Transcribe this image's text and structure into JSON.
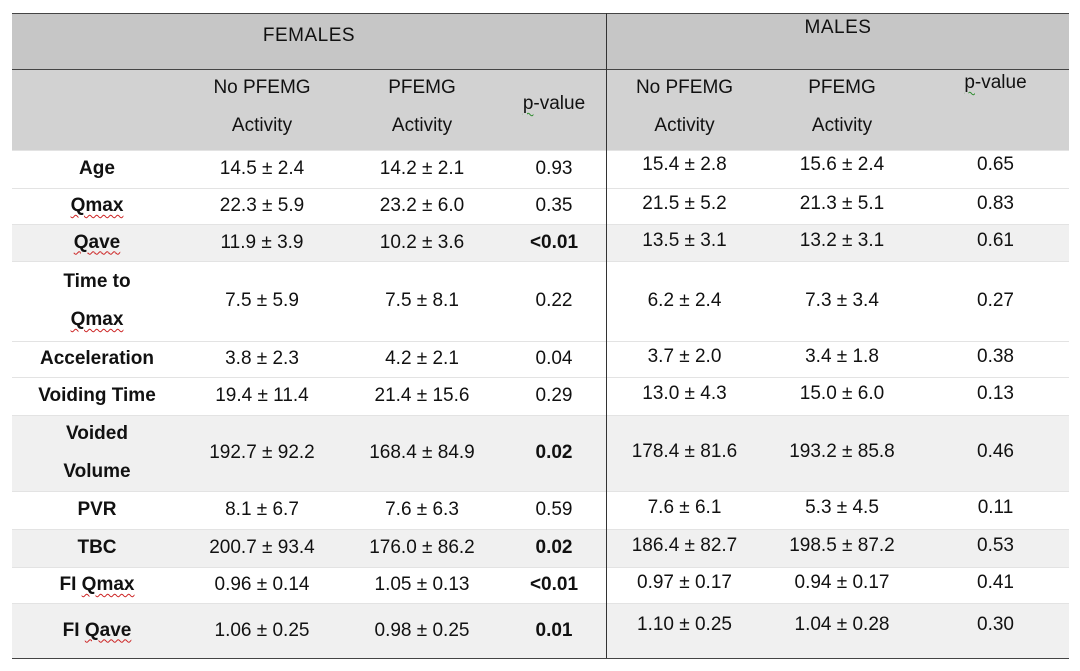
{
  "groups": {
    "females": "FEMALES",
    "males": "MALES"
  },
  "columns": {
    "no_pfemg_1": "No PFEMG",
    "no_pfemg_2": "Activity",
    "pfemg_1": "PFEMG",
    "pfemg_2": "Activity",
    "p_prefix": "p",
    "p_suffix": "-value"
  },
  "rows": [
    {
      "label": "Age",
      "label2": "",
      "f_no": "14.5 ± 2.4",
      "f_pf": "14.2 ± 2.1",
      "f_p": "0.93",
      "m_no": "15.4 ± 2.8",
      "m_pf": "15.6 ± 2.4",
      "m_p": "0.65"
    },
    {
      "label": "Qmax",
      "label2": "",
      "f_no": "22.3 ± 5.9",
      "f_pf": "23.2 ± 6.0",
      "f_p": "0.35",
      "m_no": "21.5 ± 5.2",
      "m_pf": "21.3 ± 5.1",
      "m_p": "0.83"
    },
    {
      "label": "Qave",
      "label2": "",
      "f_no": "11.9 ± 3.9",
      "f_pf": "10.2 ± 3.6",
      "f_p": "<0.01",
      "m_no": "13.5 ± 3.1",
      "m_pf": "13.2 ± 3.1",
      "m_p": "0.61"
    },
    {
      "label": "Time to",
      "label2": "Qmax",
      "f_no": "7.5 ± 5.9",
      "f_pf": "7.5 ± 8.1",
      "f_p": "0.22",
      "m_no": "6.2 ± 2.4",
      "m_pf": "7.3 ± 3.4",
      "m_p": "0.27"
    },
    {
      "label": "Acceleration",
      "label2": "",
      "f_no": "3.8 ± 2.3",
      "f_pf": "4.2 ± 2.1",
      "f_p": "0.04",
      "m_no": "3.7 ± 2.0",
      "m_pf": "3.4 ± 1.8",
      "m_p": "0.38"
    },
    {
      "label": "Voiding Time",
      "label2": "",
      "f_no": "19.4 ± 11.4",
      "f_pf": "21.4 ± 15.6",
      "f_p": "0.29",
      "m_no": "13.0 ± 4.3",
      "m_pf": "15.0 ± 6.0",
      "m_p": "0.13"
    },
    {
      "label": "Voided",
      "label2": "Volume",
      "f_no": "192.7 ± 92.2",
      "f_pf": "168.4 ± 84.9",
      "f_p": "0.02",
      "m_no": "178.4 ± 81.6",
      "m_pf": "193.2 ± 85.8",
      "m_p": "0.46"
    },
    {
      "label": "PVR",
      "label2": "",
      "f_no": "8.1 ± 6.7",
      "f_pf": "7.6 ± 6.3",
      "f_p": "0.59",
      "m_no": "7.6 ± 6.1",
      "m_pf": "5.3 ± 4.5",
      "m_p": "0.11"
    },
    {
      "label": "TBC",
      "label2": "",
      "f_no": "200.7 ± 93.4",
      "f_pf": "176.0 ± 86.2",
      "f_p": "0.02",
      "m_no": "186.4 ± 82.7",
      "m_pf": "198.5 ± 87.2",
      "m_p": "0.53"
    },
    {
      "label": "FI Qmax",
      "label2": "",
      "f_no": "0.96 ± 0.14",
      "f_pf": "1.05 ± 0.13",
      "f_p": "<0.01",
      "m_no": "0.97 ± 0.17",
      "m_pf": "0.94 ± 0.17",
      "m_p": "0.41"
    },
    {
      "label": "FI Qave",
      "label2": "",
      "f_no": "1.06 ± 0.25",
      "f_pf": "0.98 ± 0.25",
      "f_p": "0.01",
      "m_no": "1.10 ± 0.25",
      "m_pf": "1.04 ± 0.28",
      "m_p": "0.30"
    }
  ]
}
